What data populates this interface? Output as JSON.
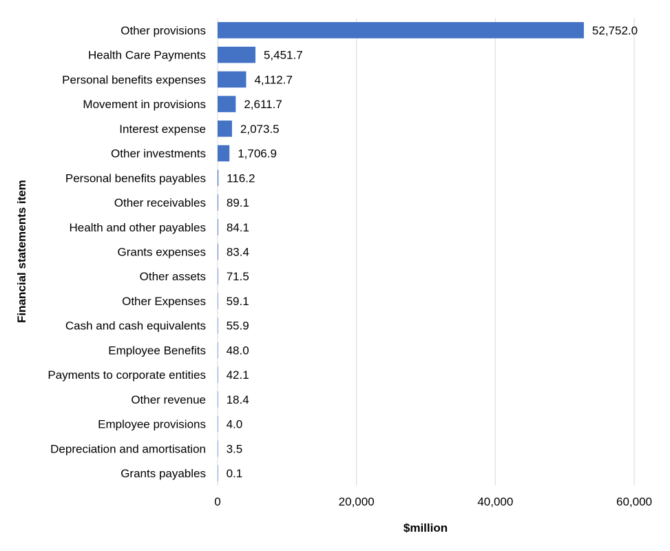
{
  "chart_data": {
    "type": "bar",
    "orientation": "horizontal",
    "categories": [
      "Other provisions",
      "Health Care Payments",
      "Personal benefits expenses",
      "Movement in provisions",
      "Interest expense",
      "Other investments",
      "Personal benefits payables",
      "Other receivables",
      "Health and other payables",
      "Grants expenses",
      "Other assets",
      "Other Expenses",
      "Cash and cash equivalents",
      "Employee Benefits",
      "Payments to corporate entities",
      "Other revenue",
      "Employee provisions",
      "Depreciation and amortisation",
      "Grants payables"
    ],
    "values": [
      52752.0,
      5451.7,
      4112.7,
      2611.7,
      2073.5,
      1706.9,
      116.2,
      89.1,
      84.1,
      83.4,
      71.5,
      59.1,
      55.9,
      48.0,
      42.1,
      18.4,
      4.0,
      3.5,
      0.1
    ],
    "value_labels": [
      "52,752.0",
      "5,451.7",
      "4,112.7",
      "2,611.7",
      "2,073.5",
      "1,706.9",
      "116.2",
      "89.1",
      "84.1",
      "83.4",
      "71.5",
      "59.1",
      "55.9",
      "48.0",
      "42.1",
      "18.4",
      "4.0",
      "3.5",
      "0.1"
    ],
    "xlim": [
      0,
      60000
    ],
    "x_ticks": [
      0,
      20000,
      40000,
      60000
    ],
    "x_tick_labels": [
      "0",
      "20,000",
      "40,000",
      "60,000"
    ],
    "xlabel": "$million",
    "ylabel": "Financial statements item",
    "title": "",
    "grid": "vertical",
    "legend": "none",
    "bar_color": "#4472c4"
  }
}
